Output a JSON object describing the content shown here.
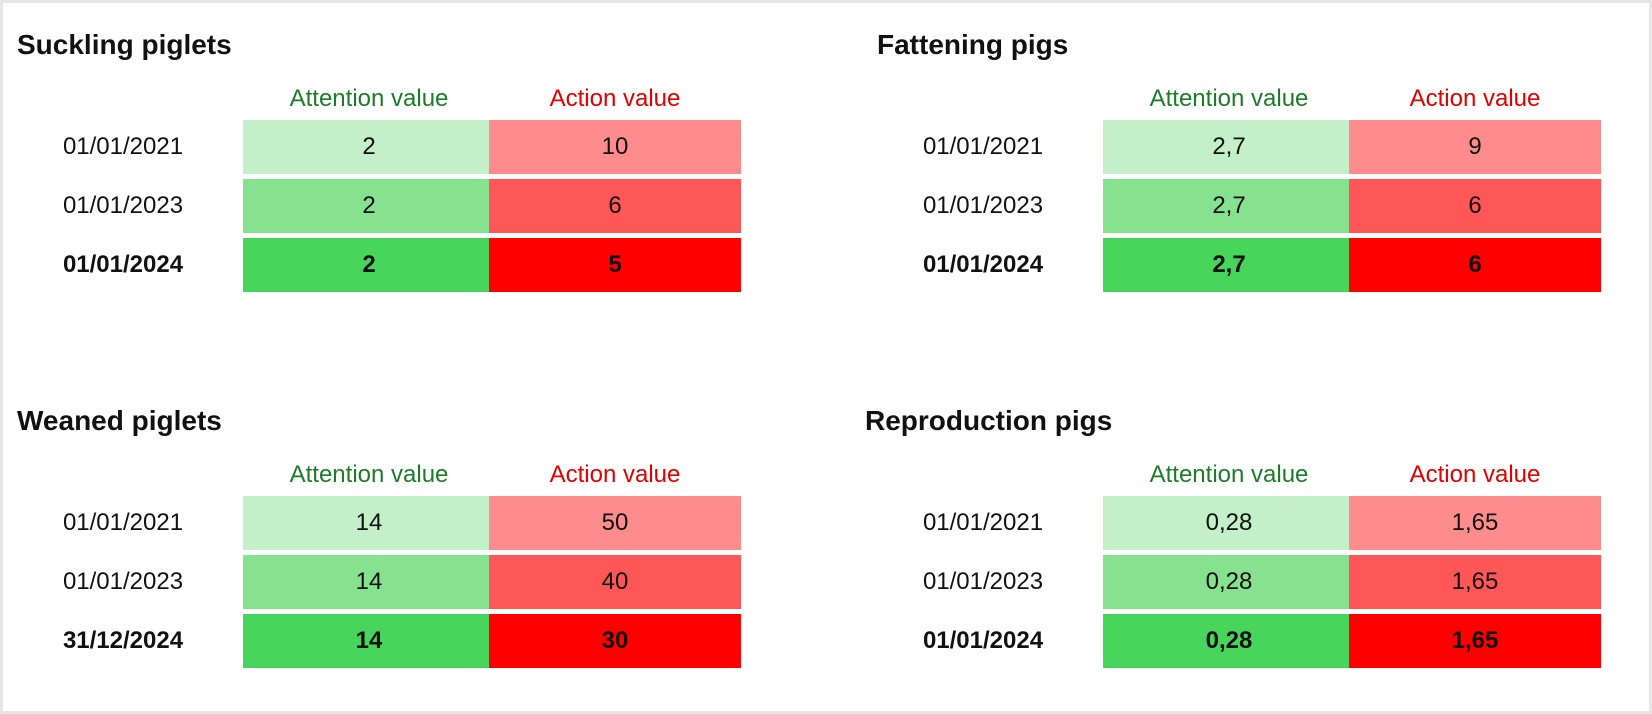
{
  "chart_data": [
    {
      "type": "table",
      "title": "Suckling piglets",
      "columns": [
        "Attention value",
        "Action value"
      ],
      "rows": [
        {
          "date": "01/01/2021",
          "attention": "2",
          "action": "10"
        },
        {
          "date": "01/01/2023",
          "attention": "2",
          "action": "6"
        },
        {
          "date": "01/01/2024",
          "attention": "2",
          "action": "5"
        }
      ]
    },
    {
      "type": "table",
      "title": "Fattening pigs",
      "columns": [
        "Attention value",
        "Action value"
      ],
      "rows": [
        {
          "date": "01/01/2021",
          "attention": "2,7",
          "action": "9"
        },
        {
          "date": "01/01/2023",
          "attention": "2,7",
          "action": "6"
        },
        {
          "date": "01/01/2024",
          "attention": "2,7",
          "action": "6"
        }
      ]
    },
    {
      "type": "table",
      "title": "Weaned piglets",
      "columns": [
        "Attention value",
        "Action value"
      ],
      "rows": [
        {
          "date": "01/01/2021",
          "attention": "14",
          "action": "50"
        },
        {
          "date": "01/01/2023",
          "attention": "14",
          "action": "40"
        },
        {
          "date": "31/12/2024",
          "attention": "14",
          "action": "30"
        }
      ]
    },
    {
      "type": "table",
      "title": "Reproduction pigs",
      "columns": [
        "Attention value",
        "Action value"
      ],
      "rows": [
        {
          "date": "01/01/2021",
          "attention": "0,28",
          "action": "1,65"
        },
        {
          "date": "01/01/2023",
          "attention": "0,28",
          "action": "1,65"
        },
        {
          "date": "01/01/2024",
          "attention": "0,28",
          "action": "1,65"
        }
      ]
    }
  ],
  "colors": {
    "attention_shades": [
      "#c3f0c8",
      "#87e28f",
      "#47d65b"
    ],
    "action_shades": [
      "#ff8c8c",
      "#ff5757",
      "#ff0000"
    ],
    "attention_header": "#1e7b2a",
    "action_header": "#e00000"
  }
}
